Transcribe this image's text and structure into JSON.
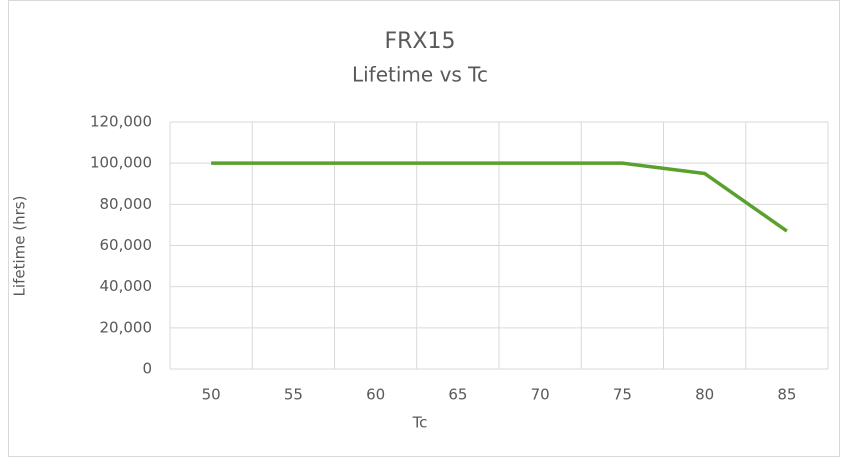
{
  "chart_data": {
    "type": "line",
    "title": "FRX15",
    "subtitle": "Lifetime vs Tc",
    "xlabel": "Tc",
    "ylabel": "Lifetime (hrs)",
    "categories": [
      "50",
      "55",
      "60",
      "65",
      "70",
      "75",
      "80",
      "85"
    ],
    "series": [
      {
        "name": "Lifetime",
        "color": "#5aa02c",
        "values": [
          100000,
          100000,
          100000,
          100000,
          100000,
          100000,
          95000,
          67000
        ]
      }
    ],
    "ylim": [
      0,
      120000
    ],
    "yticks": [
      0,
      {
        "value": 20000,
        "label": "20,000"
      },
      {
        "value": 40000,
        "label": "40,000"
      },
      {
        "value": 60000,
        "label": "60,000"
      },
      {
        "value": 80000,
        "label": "80,000"
      },
      {
        "value": 100000,
        "label": "100,000"
      },
      {
        "value": 120000,
        "label": "120,000"
      }
    ],
    "grid": true
  }
}
